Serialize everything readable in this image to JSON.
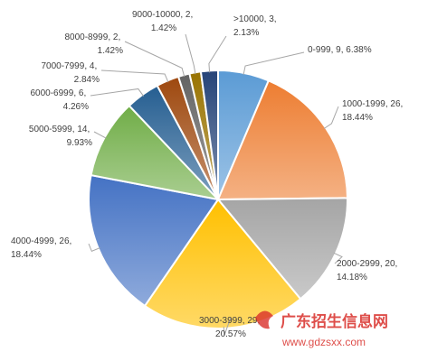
{
  "chart_data": {
    "type": "pie",
    "categories": [
      "0-999",
      "1000-1999",
      "2000-2999",
      "3000-3999",
      "4000-4999",
      "5000-5999",
      "6000-6999",
      "7000-7999",
      "8000-8999",
      "9000-10000",
      ">10000"
    ],
    "values": [
      9,
      26,
      20,
      29,
      26,
      14,
      6,
      4,
      2,
      2,
      3
    ],
    "percent_labels": [
      "6.38%",
      "18.44%",
      "14.18%",
      "20.57%",
      "18.44%",
      "9.93%",
      "4.26%",
      "2.84%",
      "1.42%",
      "1.42%",
      "2.13%"
    ],
    "colors": [
      "#5b9bd5",
      "#ed7d31",
      "#a5a5a5",
      "#ffc000",
      "#4472c4",
      "#70ad47",
      "#255e91",
      "#9e480e",
      "#636363",
      "#997300",
      "#264478"
    ]
  },
  "watermark": {
    "title": "广东招生信息网",
    "url": "www.gdzsxx.com"
  }
}
